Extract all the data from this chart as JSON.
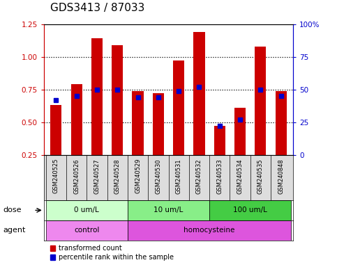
{
  "title": "GDS3413 / 87033",
  "samples": [
    "GSM240525",
    "GSM240526",
    "GSM240527",
    "GSM240528",
    "GSM240529",
    "GSM240530",
    "GSM240531",
    "GSM240532",
    "GSM240533",
    "GSM240534",
    "GSM240535",
    "GSM240848"
  ],
  "transformed_count": [
    0.63,
    0.79,
    1.14,
    1.09,
    0.74,
    0.72,
    0.97,
    1.19,
    0.47,
    0.61,
    1.08,
    0.74
  ],
  "percentile_rank_pct": [
    42,
    45,
    50,
    50,
    44,
    44,
    49,
    52,
    22,
    27,
    50,
    45
  ],
  "bar_color": "#cc0000",
  "dot_color": "#0000cc",
  "ylim_left": [
    0.25,
    1.25
  ],
  "ylim_right": [
    0,
    100
  ],
  "yticks_left": [
    0.25,
    0.5,
    0.75,
    1.0,
    1.25
  ],
  "yticks_right": [
    0,
    25,
    50,
    75,
    100
  ],
  "dose_groups": [
    {
      "label": "0 um/L",
      "start": 0,
      "end": 4,
      "color": "#ccffcc"
    },
    {
      "label": "10 um/L",
      "start": 4,
      "end": 8,
      "color": "#88ee88"
    },
    {
      "label": "100 um/L",
      "start": 8,
      "end": 12,
      "color": "#44cc44"
    }
  ],
  "agent_groups": [
    {
      "label": "control",
      "start": 0,
      "end": 4,
      "color": "#ee88ee"
    },
    {
      "label": "homocysteine",
      "start": 4,
      "end": 12,
      "color": "#dd55dd"
    }
  ],
  "dose_label": "dose",
  "agent_label": "agent",
  "legend_items": [
    {
      "color": "#cc0000",
      "label": "transformed count"
    },
    {
      "color": "#0000cc",
      "label": "percentile rank within the sample"
    }
  ],
  "bg_color": "white",
  "plot_bg_color": "white",
  "sample_row_color": "#dddddd",
  "bar_width": 0.55,
  "title_fontsize": 11,
  "tick_fontsize": 7.5,
  "label_fontsize": 8,
  "left_axis_color": "#cc0000",
  "right_axis_color": "#0000cc"
}
